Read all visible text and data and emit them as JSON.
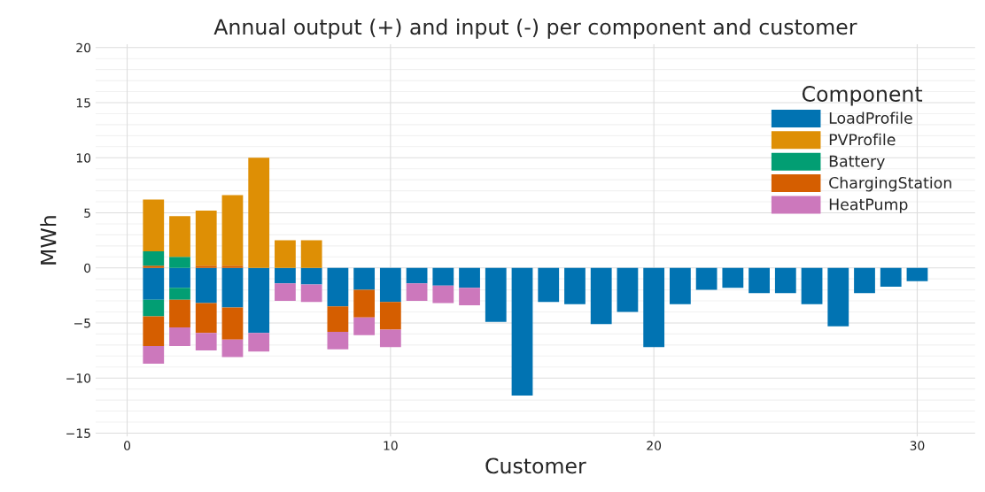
{
  "chart_data": {
    "type": "bar",
    "stacked": true,
    "title": "Annual output (+) and input (-) per component and customer",
    "xlabel": "Customer",
    "ylabel": "MWh",
    "legend_title": "Component",
    "legend": "top right",
    "grid": true,
    "x": [
      1,
      2,
      3,
      4,
      5,
      6,
      7,
      8,
      9,
      10,
      11,
      12,
      13,
      14,
      15,
      16,
      17,
      18,
      19,
      20,
      21,
      22,
      23,
      24,
      25,
      26,
      27,
      28,
      29,
      30
    ],
    "xlim": [
      -1.2,
      32.2
    ],
    "xticks": [
      0,
      10,
      20,
      30
    ],
    "ylim": [
      -15.3,
      20.3
    ],
    "yticks": [
      {
        "value": -15,
        "label": "−15"
      },
      {
        "value": -10,
        "label": "−10"
      },
      {
        "value": -5,
        "label": "−5"
      },
      0,
      5,
      10,
      15,
      20
    ],
    "series": [
      {
        "name": "LoadProfile",
        "color": "#0173b2",
        "values": [
          -2.9,
          -1.8,
          -3.2,
          -3.6,
          -5.9,
          -1.4,
          -1.5,
          -3.5,
          -2.0,
          -3.1,
          -1.4,
          -1.6,
          -1.8,
          -4.9,
          -11.6,
          -3.1,
          -3.3,
          -5.1,
          -4.0,
          -7.2,
          -3.3,
          -2.0,
          -1.8,
          -2.3,
          -2.3,
          -3.3,
          -5.3,
          -2.3,
          -1.7,
          -1.2
        ]
      },
      {
        "color": "#d55e00",
        "values": [
          0.2,
          null,
          0.2,
          0.2,
          null,
          null,
          null,
          null,
          null,
          null,
          null,
          null,
          null,
          null,
          null,
          null,
          null,
          null,
          null,
          null,
          null,
          null,
          null,
          null,
          null,
          null,
          null,
          null,
          null,
          null
        ]
      },
      {
        "color": "#029e73",
        "values": [
          1.3,
          1.0,
          null,
          null,
          null,
          null,
          null,
          null,
          null,
          null,
          null,
          null,
          null,
          null,
          null,
          null,
          null,
          null,
          null,
          null,
          null,
          null,
          null,
          null,
          null,
          null,
          null,
          null,
          null,
          null
        ]
      },
      {
        "name": "PVProfile",
        "color": "#de8f05",
        "values": [
          4.7,
          3.7,
          5.0,
          6.4,
          10.0,
          2.5,
          2.5,
          null,
          null,
          null,
          null,
          null,
          null,
          null,
          null,
          null,
          null,
          null,
          null,
          null,
          null,
          null,
          null,
          null,
          null,
          null,
          null,
          null,
          null,
          null
        ]
      },
      {
        "name": "Battery",
        "color": "#029e73",
        "values": [
          -1.5,
          -1.1,
          null,
          null,
          null,
          null,
          null,
          null,
          null,
          null,
          null,
          null,
          null,
          null,
          null,
          null,
          null,
          null,
          null,
          null,
          null,
          null,
          null,
          null,
          null,
          null,
          null,
          null,
          null,
          null
        ]
      },
      {
        "name": "ChargingStation",
        "color": "#d55e00",
        "values": [
          -2.7,
          -2.5,
          -2.7,
          -2.9,
          null,
          null,
          null,
          -2.3,
          -2.5,
          -2.5,
          null,
          null,
          null,
          null,
          null,
          null,
          null,
          null,
          null,
          null,
          null,
          null,
          null,
          null,
          null,
          null,
          null,
          null,
          null,
          null
        ]
      },
      {
        "name": "HeatPump",
        "color": "#cc78bc",
        "values": [
          -1.6,
          -1.7,
          -1.6,
          -1.6,
          -1.7,
          -1.6,
          -1.6,
          -1.6,
          -1.6,
          -1.6,
          -1.6,
          -1.6,
          -1.6,
          null,
          null,
          null,
          null,
          null,
          null,
          null,
          null,
          null,
          null,
          null,
          null,
          null,
          null,
          null,
          null,
          null
        ]
      }
    ]
  }
}
